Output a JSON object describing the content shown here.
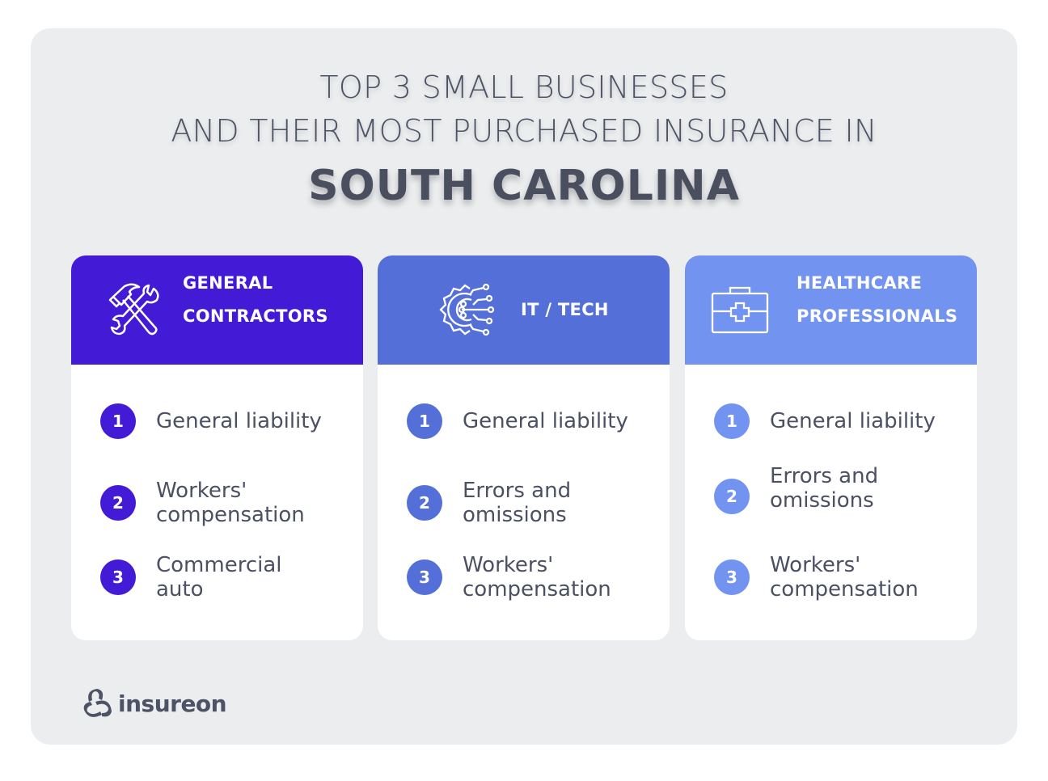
{
  "title": {
    "line1": "TOP 3 SMALL BUSINESSES",
    "line2": "AND THEIR MOST PURCHASED INSURANCE IN",
    "state": "SOUTH CAROLINA"
  },
  "colors": {
    "general_contractors": "#431bd6",
    "it_tech": "#5470d8",
    "healthcare": "#7293ef",
    "text": "#4b5063",
    "background": "#ecedef"
  },
  "cards": [
    {
      "icon": "hammer-wrench-icon",
      "title_line1": "GENERAL",
      "title_line2": "CONTRACTORS",
      "items": [
        {
          "num": "1",
          "label": "General liability"
        },
        {
          "num": "2",
          "label": "Workers' compensation"
        },
        {
          "num": "3",
          "label": "Commercial auto"
        }
      ]
    },
    {
      "icon": "gear-circuit-icon",
      "title_line1": "IT / TECH",
      "title_line2": "",
      "items": [
        {
          "num": "1",
          "label": "General liability"
        },
        {
          "num": "2",
          "label": "Errors and omissions"
        },
        {
          "num": "3",
          "label": "Workers' compensation"
        }
      ]
    },
    {
      "icon": "medical-kit-icon",
      "title_line1": "HEALTHCARE",
      "title_line2": "PROFESSIONALS",
      "items": [
        {
          "num": "1",
          "label": "General liability"
        },
        {
          "num": "2",
          "label": "Errors and omissions"
        },
        {
          "num": "3",
          "label": "Workers' compensation"
        }
      ]
    }
  ],
  "logo": {
    "text": "insureon"
  }
}
